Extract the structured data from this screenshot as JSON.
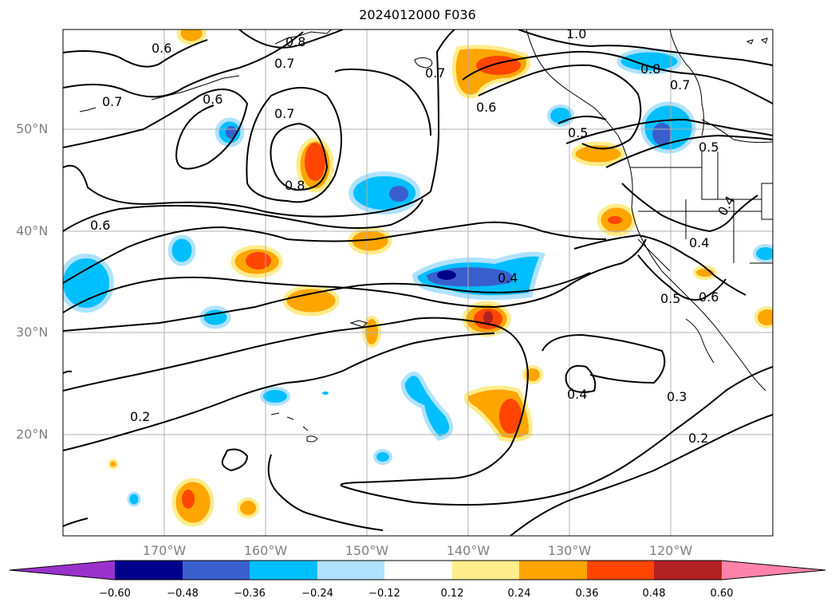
{
  "title": "2024012000 F036",
  "lat_labels": [
    "50°N",
    "40°N",
    "30°N",
    "20°N"
  ],
  "lon_labels": [
    "170°W",
    "160°W",
    "150°W",
    "140°W",
    "130°W",
    "120°W"
  ],
  "colorbar": {
    "ticks": [
      "−0.60",
      "−0.48",
      "−0.36",
      "−0.24",
      "−0.12",
      "0.12",
      "0.24",
      "0.36",
      "0.48",
      "0.60"
    ],
    "colors": [
      "#9932cc",
      "#00008b",
      "#3a5fcd",
      "#00bfff",
      "#b0e2ff",
      "#ffffff",
      "#ffec8b",
      "#ffa500",
      "#ff4500",
      "#b22222",
      "#ff82ab"
    ]
  },
  "contour_labels": [
    "0.6",
    "0.8",
    "0.7",
    "0.6",
    "0.7",
    "0.8",
    "0.7",
    "0.6",
    "0.7",
    "1.0",
    "0.8",
    "0.7",
    "0.5",
    "0.5",
    "0.6",
    "0.4",
    "0.4",
    "0.4",
    "0.5",
    "0.6",
    "0.3",
    "0.4",
    "0.2",
    "0.2"
  ]
}
